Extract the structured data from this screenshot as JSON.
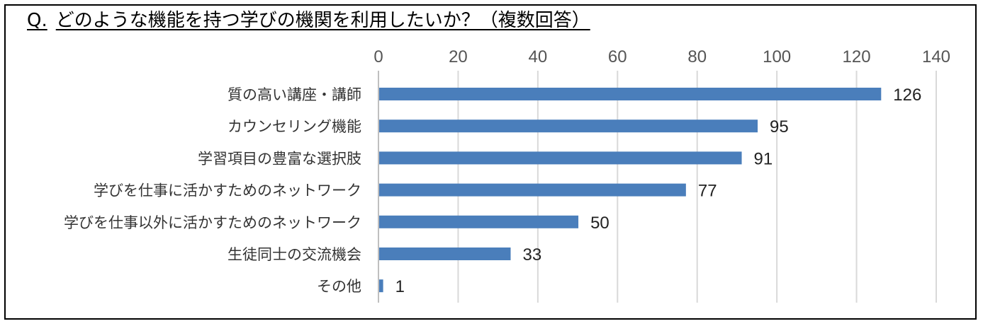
{
  "title": {
    "prefix": "Q.",
    "text": "どのような機能を持つ学びの機関を利用したいか？（複数回答）"
  },
  "chart_data": {
    "type": "bar",
    "orientation": "horizontal",
    "categories": [
      "質の高い講座・講師",
      "カウンセリング機能",
      "学習項目の豊富な選択肢",
      "学びを仕事に活かすためのネットワーク",
      "学びを仕事以外に活かすためのネットワーク",
      "生徒同士の交流機会",
      "その他"
    ],
    "values": [
      126,
      95,
      91,
      77,
      50,
      33,
      1
    ],
    "xlim": [
      0,
      140
    ],
    "xticks": [
      0,
      20,
      40,
      60,
      80,
      100,
      120,
      140
    ],
    "xticks_position": "top",
    "grid": "vertical",
    "bar_color": "#4a7ebb",
    "grid_color": "#d9d9d9",
    "data_labels": true,
    "legend": "none"
  }
}
